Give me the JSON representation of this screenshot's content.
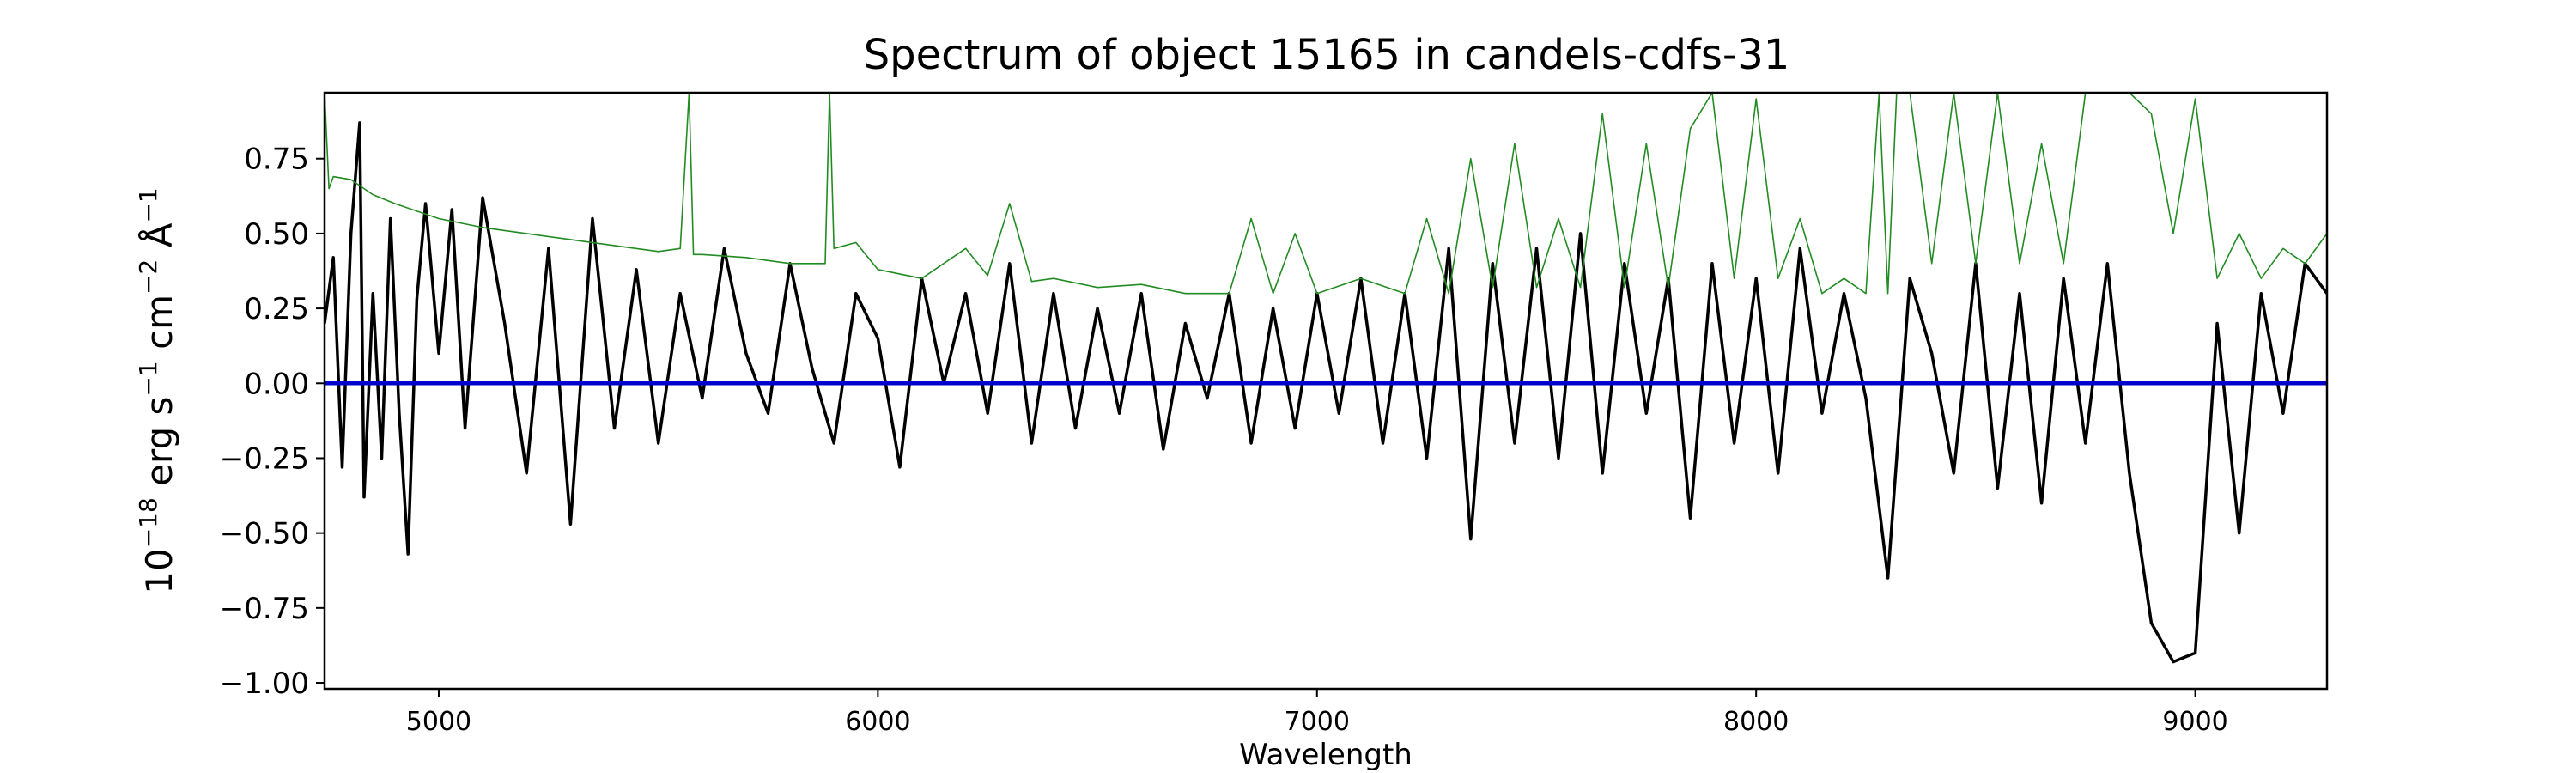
{
  "chart_data": {
    "type": "line",
    "title": "Spectrum of object 15165 in candels-cdfs-31",
    "xlabel": "Wavelength",
    "ylabel_parts": {
      "base": "10",
      "exp1": "−18",
      "t1": " erg s",
      "exp2": "−1",
      "t2": " cm",
      "exp3": "−2",
      "t3": " Å",
      "exp4": "−1"
    },
    "xlim": [
      4740,
      9300
    ],
    "ylim": [
      -1.02,
      0.97
    ],
    "x_ticks": [
      5000,
      6000,
      7000,
      8000,
      9000
    ],
    "x_tick_labels": [
      "5000",
      "6000",
      "7000",
      "8000",
      "9000"
    ],
    "y_ticks": [
      0.75,
      0.5,
      0.25,
      0.0,
      -0.25,
      -0.5,
      -0.75,
      -1.0
    ],
    "y_tick_labels": [
      "0.75",
      "0.50",
      "0.25",
      "0.00",
      "−0.25",
      "−0.50",
      "−0.75",
      "−1.00"
    ],
    "grid": false,
    "series": [
      {
        "role": "flux",
        "color": "#000000",
        "x": [
          4740,
          4760,
          4780,
          4800,
          4820,
          4830,
          4850,
          4870,
          4890,
          4910,
          4930,
          4950,
          4970,
          5000,
          5030,
          5060,
          5100,
          5150,
          5200,
          5250,
          5300,
          5350,
          5400,
          5450,
          5500,
          5550,
          5600,
          5650,
          5700,
          5750,
          5800,
          5850,
          5900,
          5950,
          6000,
          6050,
          6100,
          6150,
          6200,
          6250,
          6300,
          6350,
          6400,
          6450,
          6500,
          6550,
          6600,
          6650,
          6700,
          6750,
          6800,
          6850,
          6900,
          6950,
          7000,
          7050,
          7100,
          7150,
          7200,
          7250,
          7300,
          7350,
          7400,
          7450,
          7500,
          7550,
          7600,
          7650,
          7700,
          7750,
          7800,
          7850,
          7900,
          7950,
          8000,
          8050,
          8100,
          8150,
          8200,
          8250,
          8300,
          8350,
          8400,
          8450,
          8500,
          8550,
          8600,
          8650,
          8700,
          8750,
          8800,
          8850,
          8900,
          8950,
          9000,
          9050,
          9100,
          9150,
          9200,
          9250,
          9300
        ],
        "y": [
          0.2,
          0.42,
          -0.28,
          0.5,
          0.87,
          -0.38,
          0.3,
          -0.25,
          0.55,
          -0.1,
          -0.57,
          0.28,
          0.6,
          0.1,
          0.58,
          -0.15,
          0.62,
          0.2,
          -0.3,
          0.45,
          -0.47,
          0.55,
          -0.15,
          0.38,
          -0.2,
          0.3,
          -0.05,
          0.45,
          0.1,
          -0.1,
          0.4,
          0.05,
          -0.2,
          0.3,
          0.15,
          -0.28,
          0.35,
          0.0,
          0.3,
          -0.1,
          0.4,
          -0.2,
          0.3,
          -0.15,
          0.25,
          -0.1,
          0.3,
          -0.22,
          0.2,
          -0.05,
          0.3,
          -0.2,
          0.25,
          -0.15,
          0.3,
          -0.1,
          0.35,
          -0.2,
          0.3,
          -0.25,
          0.45,
          -0.52,
          0.4,
          -0.2,
          0.45,
          -0.25,
          0.5,
          -0.3,
          0.4,
          -0.1,
          0.35,
          -0.45,
          0.4,
          -0.2,
          0.35,
          -0.3,
          0.45,
          -0.1,
          0.3,
          -0.05,
          -0.65,
          0.35,
          0.1,
          -0.3,
          0.4,
          -0.35,
          0.3,
          -0.4,
          0.35,
          -0.2,
          0.4,
          -0.3,
          -0.8,
          -0.93,
          -0.9,
          0.2,
          -0.5,
          0.3,
          -0.1,
          0.4,
          0.3
        ]
      },
      {
        "role": "error",
        "color": "#228b22",
        "x": [
          4740,
          4750,
          4760,
          4800,
          4850,
          4900,
          5000,
          5100,
          5200,
          5300,
          5400,
          5500,
          5550,
          5570,
          5580,
          5600,
          5700,
          5800,
          5880,
          5890,
          5900,
          5950,
          6000,
          6100,
          6200,
          6250,
          6300,
          6350,
          6400,
          6500,
          6600,
          6700,
          6800,
          6850,
          6900,
          6950,
          7000,
          7100,
          7200,
          7250,
          7300,
          7350,
          7400,
          7450,
          7500,
          7550,
          7600,
          7650,
          7700,
          7750,
          7800,
          7850,
          7900,
          7950,
          8000,
          8050,
          8100,
          8150,
          8200,
          8250,
          8280,
          8300,
          8320,
          8350,
          8400,
          8450,
          8500,
          8550,
          8600,
          8650,
          8700,
          8750,
          8780,
          8800,
          8830,
          8850,
          8900,
          8950,
          9000,
          9050,
          9100,
          9150,
          9200,
          9250,
          9300
        ],
        "y": [
          0.97,
          0.65,
          0.69,
          0.68,
          0.63,
          0.6,
          0.55,
          0.52,
          0.5,
          0.48,
          0.46,
          0.44,
          0.45,
          0.97,
          0.43,
          0.43,
          0.42,
          0.4,
          0.4,
          0.97,
          0.45,
          0.47,
          0.38,
          0.35,
          0.45,
          0.36,
          0.6,
          0.34,
          0.35,
          0.32,
          0.33,
          0.3,
          0.3,
          0.55,
          0.3,
          0.5,
          0.3,
          0.35,
          0.3,
          0.55,
          0.3,
          0.75,
          0.32,
          0.8,
          0.32,
          0.55,
          0.32,
          0.9,
          0.32,
          0.8,
          0.32,
          0.85,
          0.97,
          0.35,
          0.95,
          0.35,
          0.55,
          0.3,
          0.35,
          0.3,
          0.97,
          0.3,
          0.97,
          0.97,
          0.4,
          0.97,
          0.4,
          0.97,
          0.4,
          0.8,
          0.4,
          0.97,
          0.97,
          0.97,
          0.97,
          0.97,
          0.9,
          0.5,
          0.95,
          0.35,
          0.5,
          0.35,
          0.45,
          0.4,
          0.5
        ]
      },
      {
        "role": "model",
        "color": "#0000cd",
        "x": [
          4740,
          9300
        ],
        "y": [
          0.0,
          0.0
        ]
      }
    ]
  }
}
